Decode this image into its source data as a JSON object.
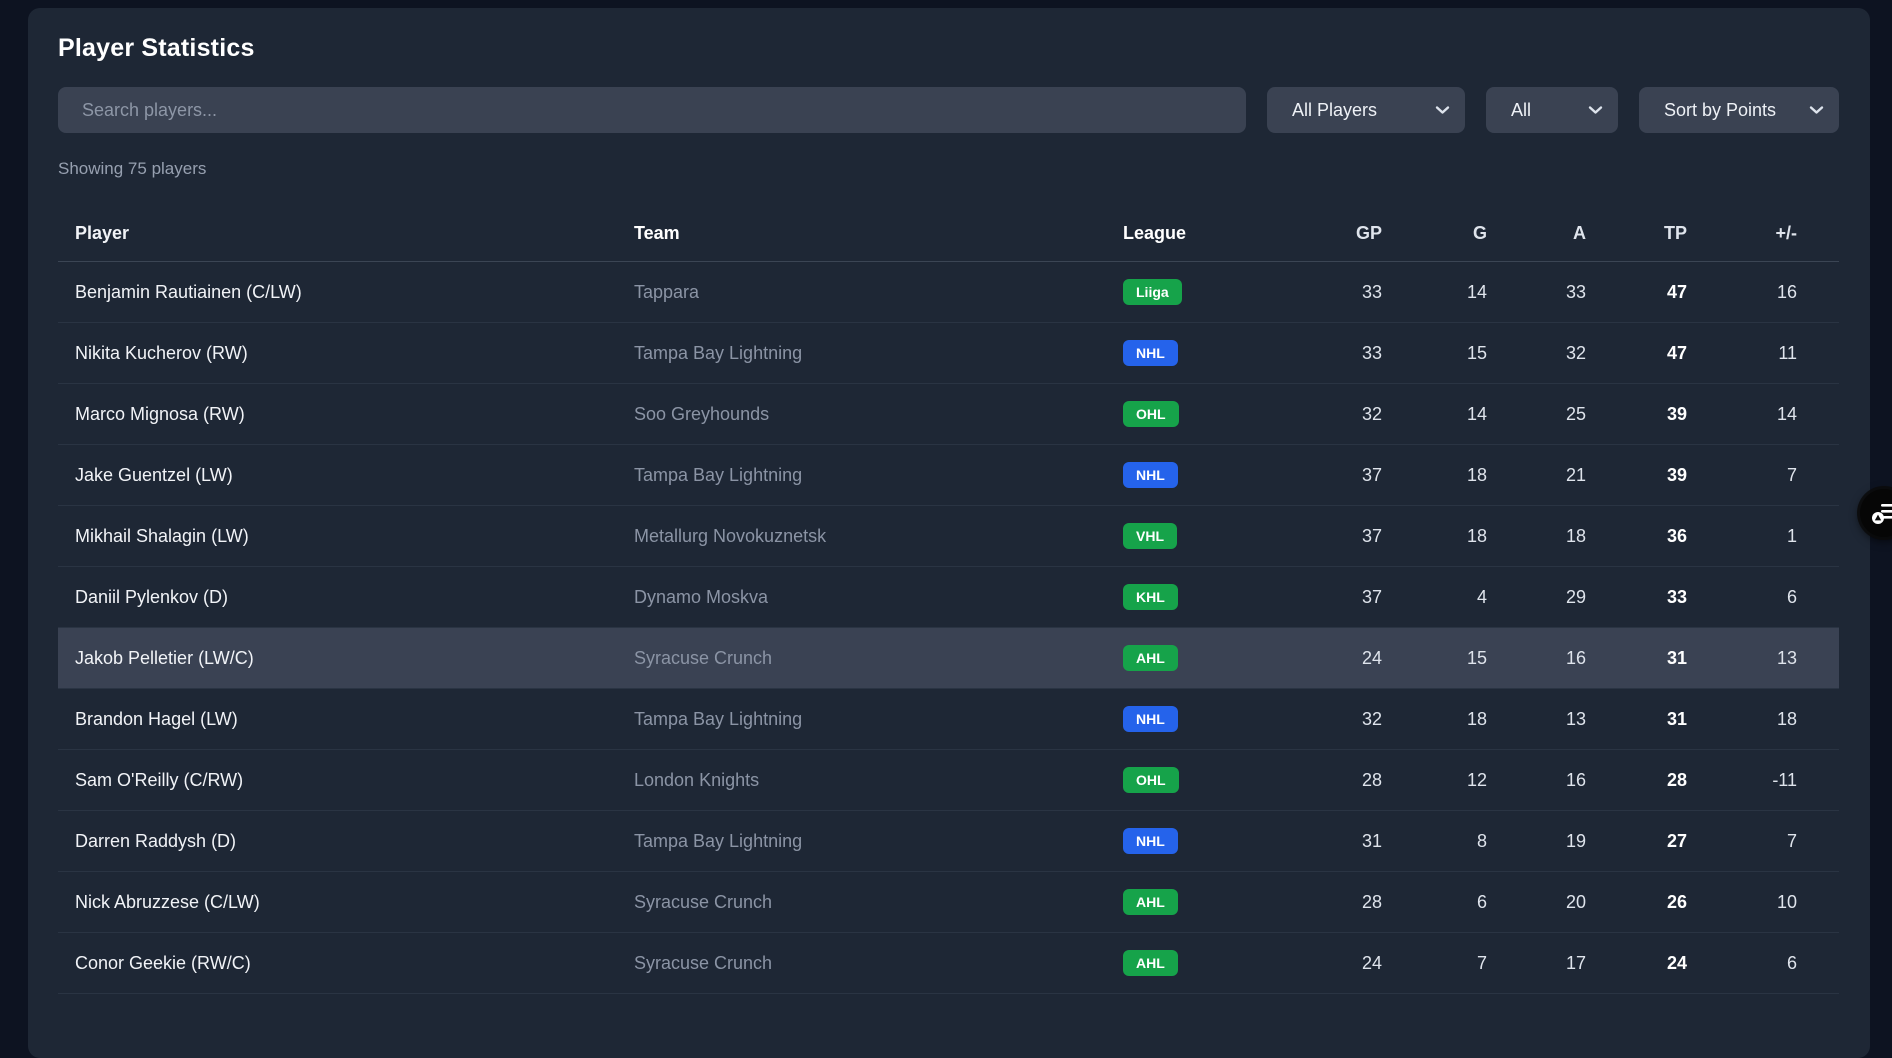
{
  "page": {
    "title": "Player Statistics",
    "results_count": "Showing 75 players"
  },
  "filters": {
    "search_placeholder": "Search players...",
    "team_filter_value": "All Players",
    "league_filter_value": "All",
    "sort_value": "Sort by Points"
  },
  "colors": {
    "badge_green": "#16a34a",
    "badge_blue": "#2563eb",
    "panel_bg": "#1e2735",
    "page_bg": "#0d1321",
    "control_bg": "#3a4252",
    "highlight_row_bg": "#3a4253"
  },
  "table": {
    "columns": [
      "Player",
      "Team",
      "League",
      "GP",
      "G",
      "A",
      "TP",
      "+/-"
    ],
    "rows": [
      {
        "player": "Benjamin Rautiainen (C/LW)",
        "team": "Tappara",
        "league": "Liiga",
        "league_style": "badge_green",
        "gp": "33",
        "g": "14",
        "a": "33",
        "tp": "47",
        "pm": "16",
        "highlighted": false
      },
      {
        "player": "Nikita Kucherov (RW)",
        "team": "Tampa Bay Lightning",
        "league": "NHL",
        "league_style": "badge_blue",
        "gp": "33",
        "g": "15",
        "a": "32",
        "tp": "47",
        "pm": "11",
        "highlighted": false
      },
      {
        "player": "Marco Mignosa (RW)",
        "team": "Soo Greyhounds",
        "league": "OHL",
        "league_style": "badge_green",
        "gp": "32",
        "g": "14",
        "a": "25",
        "tp": "39",
        "pm": "14",
        "highlighted": false
      },
      {
        "player": "Jake Guentzel (LW)",
        "team": "Tampa Bay Lightning",
        "league": "NHL",
        "league_style": "badge_blue",
        "gp": "37",
        "g": "18",
        "a": "21",
        "tp": "39",
        "pm": "7",
        "highlighted": false
      },
      {
        "player": "Mikhail Shalagin (LW)",
        "team": "Metallurg Novokuznetsk",
        "league": "VHL",
        "league_style": "badge_green",
        "gp": "37",
        "g": "18",
        "a": "18",
        "tp": "36",
        "pm": "1",
        "highlighted": false
      },
      {
        "player": "Daniil Pylenkov (D)",
        "team": "Dynamo Moskva",
        "league": "KHL",
        "league_style": "badge_green",
        "gp": "37",
        "g": "4",
        "a": "29",
        "tp": "33",
        "pm": "6",
        "highlighted": false
      },
      {
        "player": "Jakob Pelletier (LW/C)",
        "team": "Syracuse Crunch",
        "league": "AHL",
        "league_style": "badge_green",
        "gp": "24",
        "g": "15",
        "a": "16",
        "tp": "31",
        "pm": "13",
        "highlighted": true
      },
      {
        "player": "Brandon Hagel (LW)",
        "team": "Tampa Bay Lightning",
        "league": "NHL",
        "league_style": "badge_blue",
        "gp": "32",
        "g": "18",
        "a": "13",
        "tp": "31",
        "pm": "18",
        "highlighted": false
      },
      {
        "player": "Sam O'Reilly (C/RW)",
        "team": "London Knights",
        "league": "OHL",
        "league_style": "badge_green",
        "gp": "28",
        "g": "12",
        "a": "16",
        "tp": "28",
        "pm": "-11",
        "highlighted": false
      },
      {
        "player": "Darren Raddysh (D)",
        "team": "Tampa Bay Lightning",
        "league": "NHL",
        "league_style": "badge_blue",
        "gp": "31",
        "g": "8",
        "a": "19",
        "tp": "27",
        "pm": "7",
        "highlighted": false
      },
      {
        "player": "Nick Abruzzese (C/LW)",
        "team": "Syracuse Crunch",
        "league": "AHL",
        "league_style": "badge_green",
        "gp": "28",
        "g": "6",
        "a": "20",
        "tp": "26",
        "pm": "10",
        "highlighted": false
      },
      {
        "player": "Conor Geekie (RW/C)",
        "team": "Syracuse Crunch",
        "league": "AHL",
        "league_style": "badge_green",
        "gp": "24",
        "g": "7",
        "a": "17",
        "tp": "24",
        "pm": "6",
        "highlighted": false
      }
    ]
  },
  "overlay_widget": {
    "icon": "list-play-icon"
  }
}
